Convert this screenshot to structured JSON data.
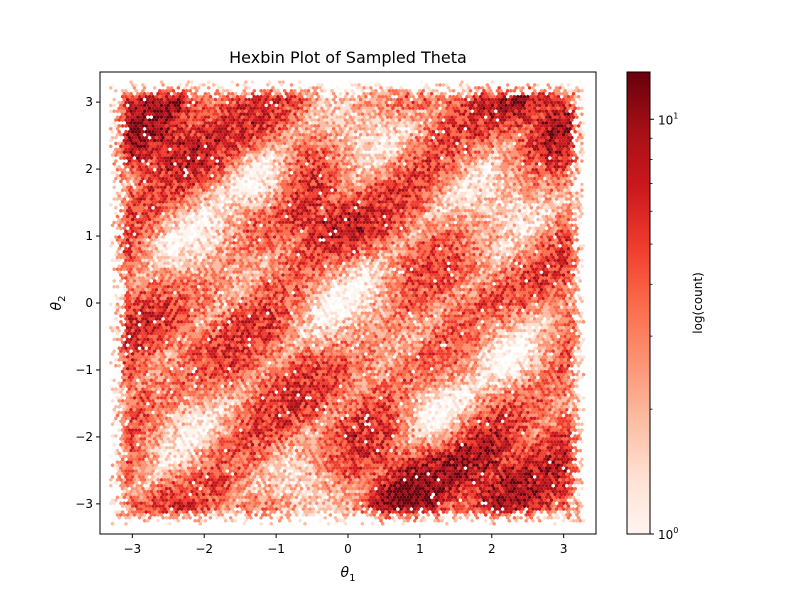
{
  "chart_data": {
    "type": "heatmap",
    "subtype": "hexbin",
    "title": "Hexbin Plot of Sampled Theta",
    "xlabel_base": "θ",
    "xlabel_sub": "1",
    "ylabel_base": "θ",
    "ylabel_sub": "2",
    "xlim": [
      -3.45,
      3.45
    ],
    "ylim": [
      -3.45,
      3.45
    ],
    "xticks": [
      -3,
      -2,
      -1,
      0,
      1,
      2,
      3
    ],
    "yticks": [
      -3,
      -2,
      -1,
      0,
      1,
      2,
      3
    ],
    "xtick_labels": [
      "−3",
      "−2",
      "−1",
      "0",
      "1",
      "2",
      "3"
    ],
    "ytick_labels": [
      "−3",
      "−2",
      "−1",
      "0",
      "1",
      "2",
      "3"
    ],
    "data_extent": {
      "x": [
        -3.3,
        3.3
      ],
      "y": [
        -3.3,
        3.3
      ]
    },
    "colormap": "Reds",
    "colors": [
      "#fff5f0",
      "#fee0d2",
      "#fcbba1",
      "#fc9272",
      "#fb6a4a",
      "#ef3b2c",
      "#cb181d",
      "#a50f15",
      "#67000d"
    ],
    "colorbar": {
      "label": "log(count)",
      "scale": "log",
      "range": [
        1,
        13
      ],
      "major_ticks": [
        {
          "value": 1,
          "base": "10",
          "exp": "0"
        },
        {
          "value": 10,
          "base": "10",
          "exp": "1"
        }
      ],
      "minor_ticks": [
        2,
        3,
        4,
        5,
        6,
        7,
        8,
        9
      ]
    },
    "grid": false,
    "legend": "none"
  }
}
